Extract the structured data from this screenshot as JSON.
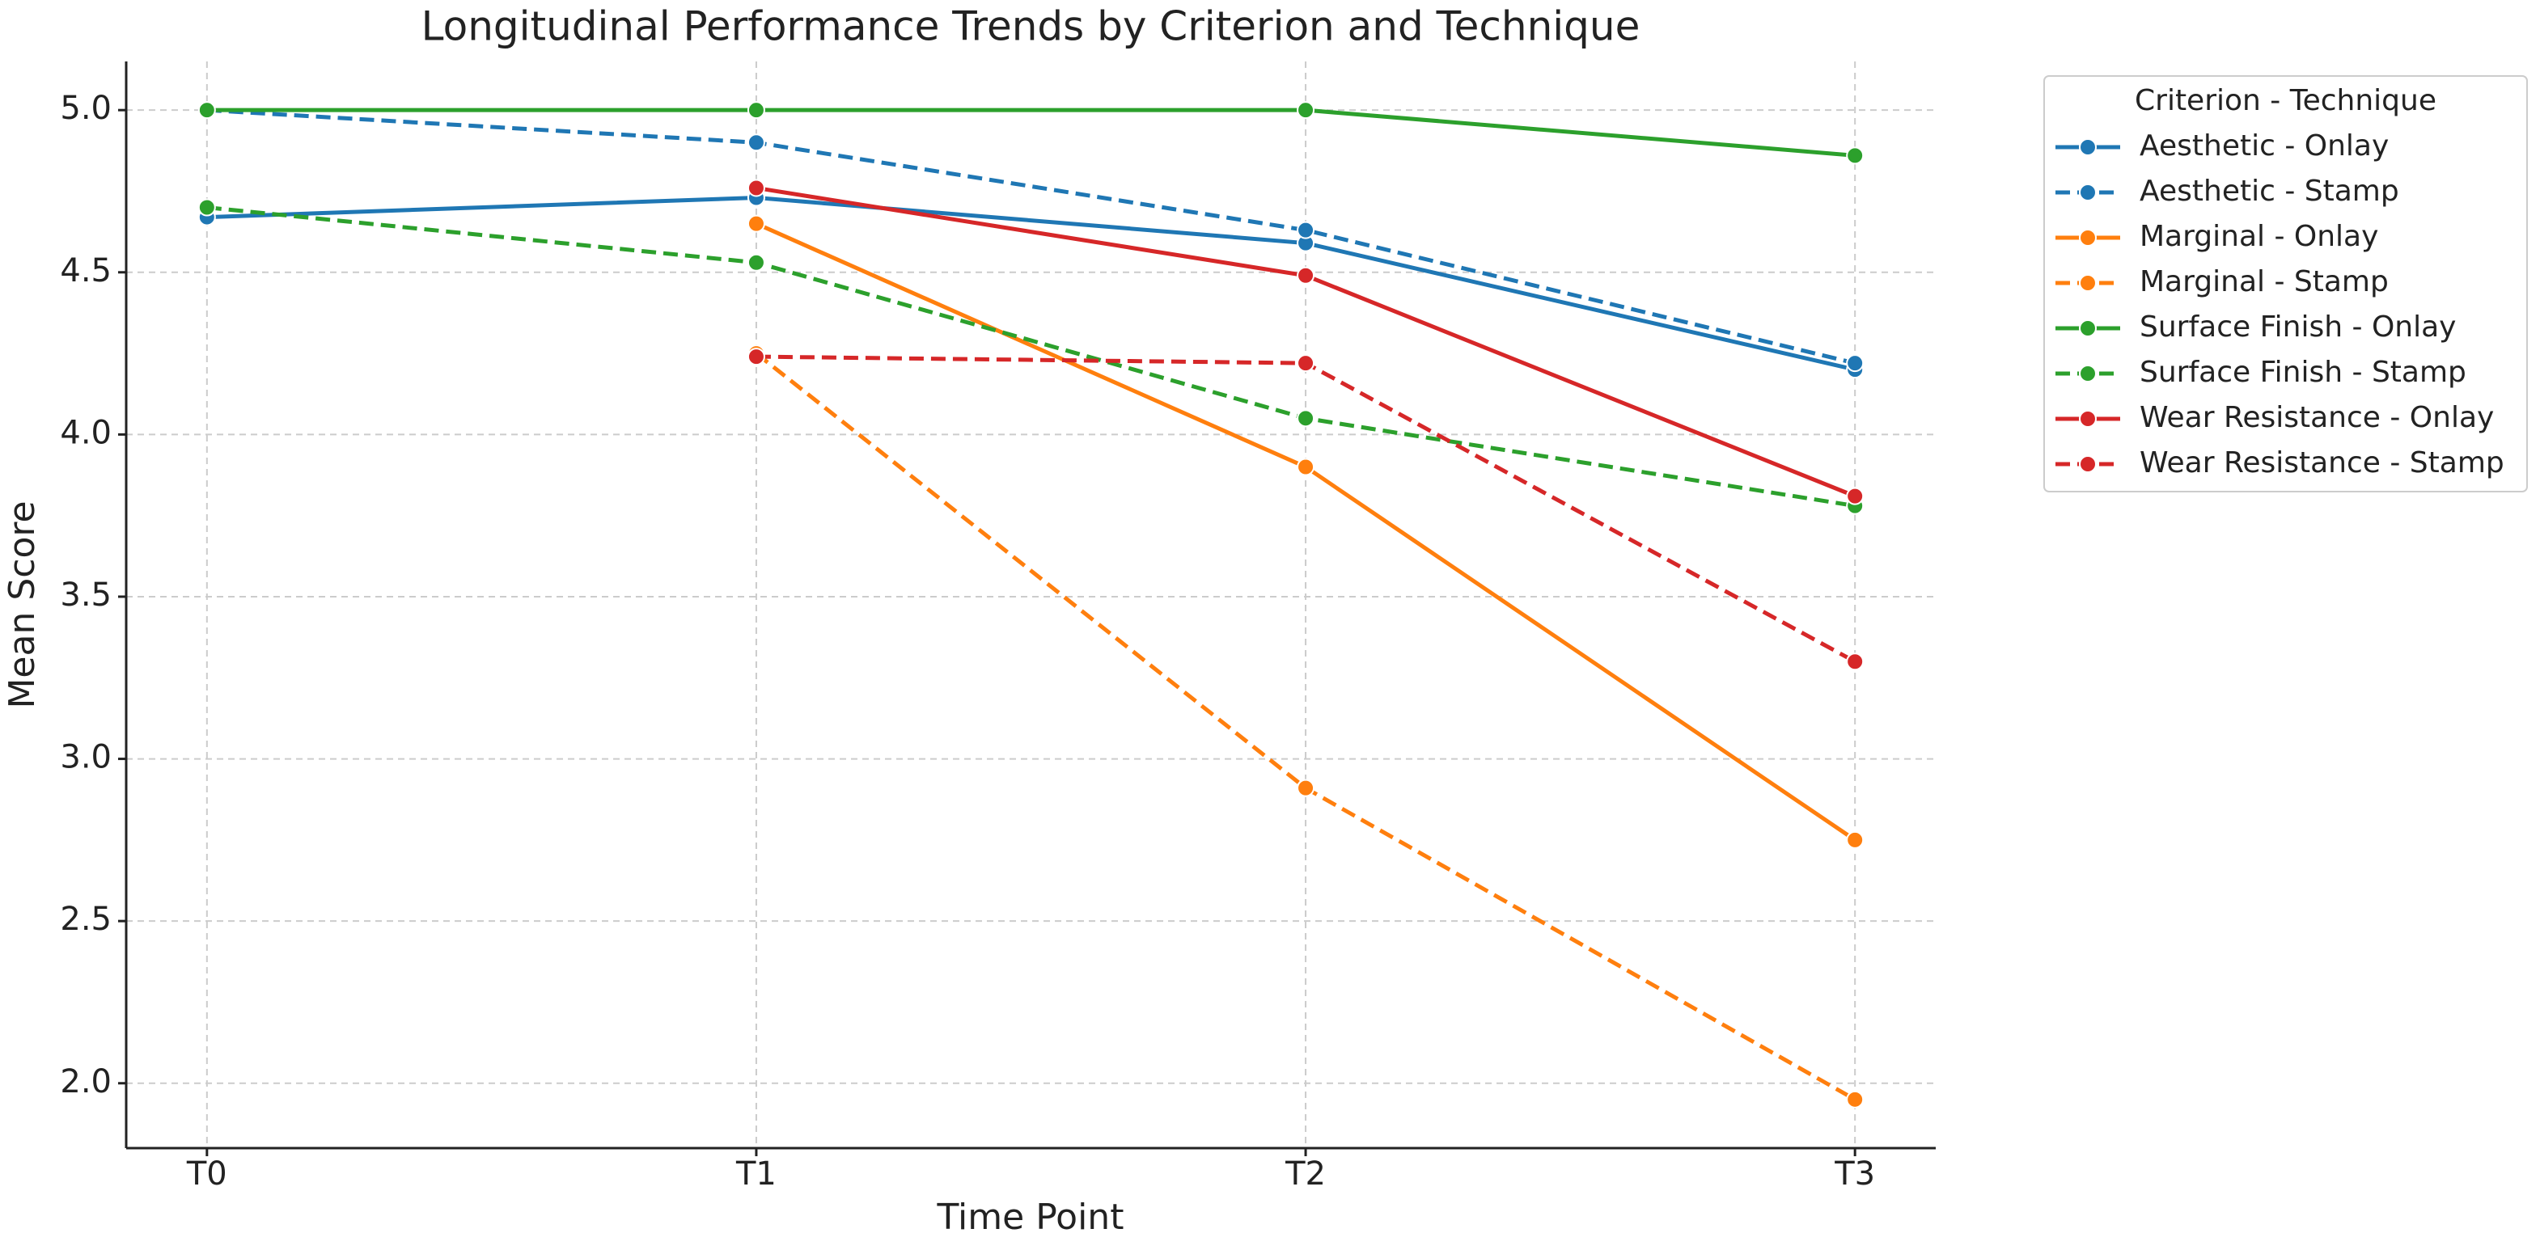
{
  "chart_data": {
    "type": "line",
    "title": "Longitudinal Performance Trends by Criterion and Technique",
    "x_label": "Time Point",
    "y_label": "Mean Score",
    "categories": [
      "T0",
      "T1",
      "T2",
      "T3"
    ],
    "ylim": [
      1.8,
      5.15
    ],
    "yticks": [
      {
        "value": 2,
        "label": "2.0"
      },
      2.5,
      {
        "value": 3,
        "label": "3.0"
      },
      3.5,
      {
        "value": 4,
        "label": "4.0"
      },
      4.5,
      {
        "value": 5,
        "label": "5.0"
      }
    ],
    "grid": true,
    "legend": "outside-right",
    "legend_title": "Criterion - Technique",
    "series": [
      {
        "name": "Aesthetic - Onlay",
        "color": "#1f77b4",
        "linestyle": "solid",
        "values": [
          4.67,
          4.73,
          4.59,
          4.2
        ]
      },
      {
        "name": "Aesthetic - Stamp",
        "color": "#1f77b4",
        "linestyle": "dashed",
        "values": [
          5,
          4.9,
          4.63,
          4.22
        ]
      },
      {
        "name": "Marginal - Onlay",
        "color": "#ff7f0e",
        "linestyle": "solid",
        "values": [
          null,
          4.65,
          3.9,
          2.75
        ]
      },
      {
        "name": "Marginal - Stamp",
        "color": "#ff7f0e",
        "linestyle": "dashed",
        "values": [
          null,
          4.25,
          2.91,
          1.95
        ]
      },
      {
        "name": "Surface Finish - Onlay",
        "color": "#2ca02c",
        "linestyle": "solid",
        "values": [
          5,
          5,
          5,
          4.86
        ]
      },
      {
        "name": "Surface Finish - Stamp",
        "color": "#2ca02c",
        "linestyle": "dashed",
        "values": [
          4.7,
          4.53,
          4.05,
          3.78
        ]
      },
      {
        "name": "Wear Resistance - Onlay",
        "color": "#d62728",
        "linestyle": "solid",
        "values": [
          null,
          4.76,
          4.49,
          3.81
        ]
      },
      {
        "name": "Wear Resistance - Stamp",
        "color": "#d62728",
        "linestyle": "dashed",
        "values": [
          null,
          4.24,
          4.22,
          3.3
        ]
      }
    ]
  }
}
